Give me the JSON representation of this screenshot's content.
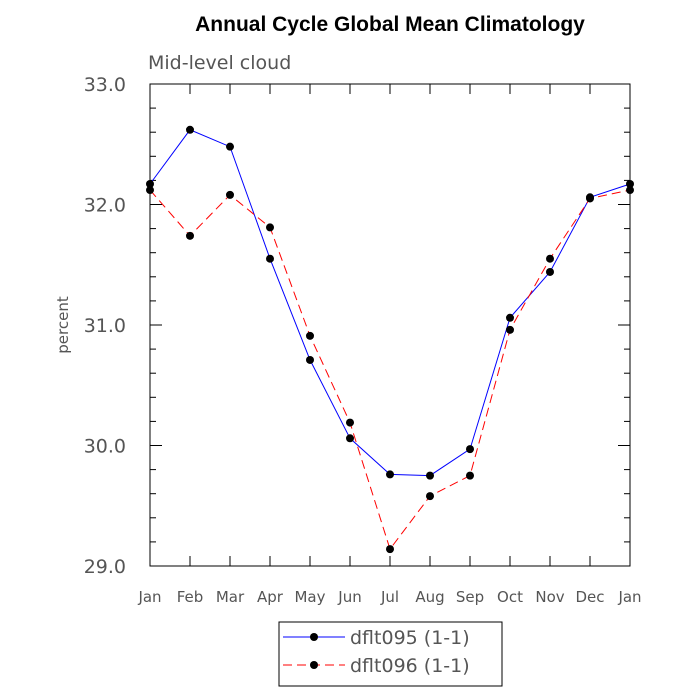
{
  "chart_data": {
    "type": "line",
    "title": "Annual Cycle Global Mean Climatology",
    "subtitle": "Mid-level cloud",
    "xlabel": "",
    "ylabel": "percent",
    "categories": [
      "Jan",
      "Feb",
      "Mar",
      "Apr",
      "May",
      "Jun",
      "Jul",
      "Aug",
      "Sep",
      "Oct",
      "Nov",
      "Dec",
      "Jan"
    ],
    "ylim": [
      29.0,
      33.0
    ],
    "yticks": [
      "29.0",
      "30.0",
      "31.0",
      "32.0",
      "33.0"
    ],
    "series": [
      {
        "name": "dflt095 (1-1)",
        "color": "#0000ff",
        "dash": "solid",
        "values": [
          32.17,
          32.62,
          32.48,
          31.55,
          30.71,
          30.06,
          29.76,
          29.75,
          29.97,
          31.06,
          31.44,
          32.06,
          32.17
        ]
      },
      {
        "name": "dflt096 (1-1)",
        "color": "#ff0000",
        "dash": "dashed",
        "values": [
          32.12,
          31.74,
          32.08,
          31.81,
          30.91,
          30.19,
          29.14,
          29.58,
          29.75,
          30.96,
          31.55,
          32.05,
          32.12
        ]
      }
    ]
  }
}
